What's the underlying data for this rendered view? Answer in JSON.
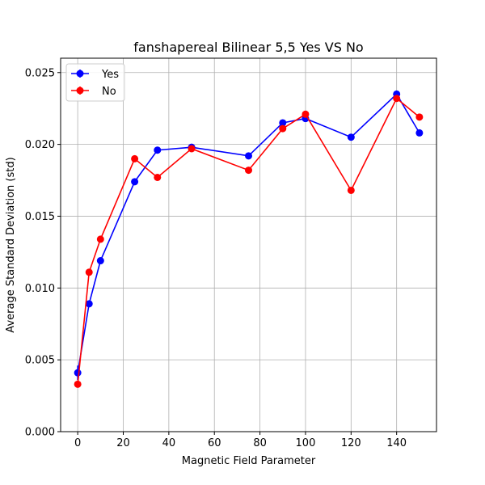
{
  "chart_data": {
    "type": "line",
    "title": "fanshapereal Bilinear 5,5 Yes VS No",
    "xlabel": "Magnetic Field Parameter",
    "ylabel": "Average Standard Deviation (std)",
    "xlim": [
      -7.5,
      157.5
    ],
    "ylim": [
      0,
      0.026
    ],
    "xticks": [
      0,
      20,
      40,
      60,
      80,
      100,
      120,
      140
    ],
    "xtick_labels": [
      "0",
      "20",
      "40",
      "60",
      "80",
      "100",
      "120",
      "140"
    ],
    "yticks": [
      0,
      0.005,
      0.01,
      0.015,
      0.02,
      0.025
    ],
    "ytick_labels": [
      "0.000",
      "0.005",
      "0.010",
      "0.015",
      "0.020",
      "0.025"
    ],
    "grid": true,
    "legend_position": "top-left",
    "x": [
      0,
      5,
      10,
      25,
      35,
      50,
      75,
      90,
      100,
      120,
      140,
      150
    ],
    "series": [
      {
        "name": "Yes",
        "color": "#0000ff",
        "values": [
          0.0041,
          0.0089,
          0.0119,
          0.0174,
          0.0196,
          0.0198,
          0.0192,
          0.0215,
          0.0218,
          0.0205,
          0.0235,
          0.0208
        ],
        "errors": [
          0.0005,
          0.0001,
          0.0001,
          0.0001,
          0.0001,
          0.0001,
          0.0001,
          0.0001,
          0.0001,
          0.0001,
          0.0001,
          0.0001
        ]
      },
      {
        "name": "No",
        "color": "#ff0000",
        "values": [
          0.0033,
          0.0111,
          0.0134,
          0.019,
          0.0177,
          0.0197,
          0.0182,
          0.0211,
          0.0221,
          0.0168,
          0.0232,
          0.0219
        ],
        "errors": [
          0.0001,
          0.0001,
          0.0001,
          0.0001,
          0.0001,
          0.0001,
          0.0001,
          0.0001,
          0.0001,
          0.0001,
          0.0001,
          0.0001
        ]
      }
    ]
  }
}
